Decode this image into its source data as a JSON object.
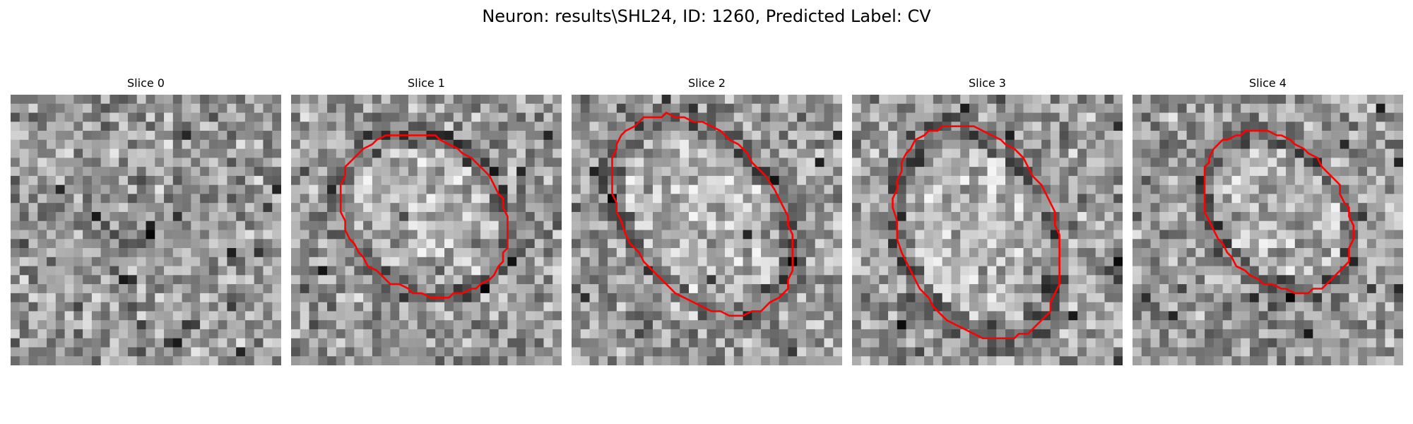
{
  "title": "Neuron: results\\SHL24, ID: 1260, Predicted Label: CV",
  "outline_color": "#ff0000",
  "image_kind": "grayscale EM slice with segmentation outline",
  "grid_size": 30,
  "panels": [
    {
      "label": "Slice 0",
      "has_outline": false,
      "seed": 11
    },
    {
      "label": "Slice 1",
      "has_outline": true,
      "seed": 23
    },
    {
      "label": "Slice 2",
      "has_outline": true,
      "seed": 37
    },
    {
      "label": "Slice 3",
      "has_outline": true,
      "seed": 41
    },
    {
      "label": "Slice 4",
      "has_outline": true,
      "seed": 53
    }
  ]
}
